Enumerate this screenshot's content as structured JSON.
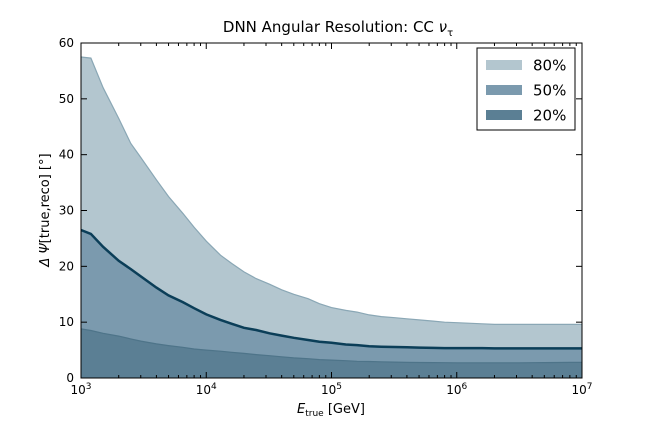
{
  "chart_data": {
    "type": "area",
    "title": {
      "main": "DNN Angular Resolution: CC ",
      "symbol": "ν",
      "sub": "τ"
    },
    "xlabel": {
      "main": "E",
      "sub": "true",
      "unit": " [GeV]"
    },
    "ylabel": {
      "main": "Δ Ψ",
      "rest": "[true,reco] [°]"
    },
    "xscale": "log",
    "xlim": [
      1000,
      10000000
    ],
    "ylim": [
      0,
      60
    ],
    "x_ticks": [
      {
        "value": 1000,
        "base": "10",
        "exp": "3"
      },
      {
        "value": 10000,
        "base": "10",
        "exp": "4"
      },
      {
        "value": 100000,
        "base": "10",
        "exp": "5"
      },
      {
        "value": 1000000,
        "base": "10",
        "exp": "6"
      },
      {
        "value": 10000000,
        "base": "10",
        "exp": "7"
      }
    ],
    "y_ticks": [
      "0",
      "10",
      "20",
      "30",
      "40",
      "50",
      "60"
    ],
    "grid": false,
    "legend_placement": "top-right",
    "x": [
      1000,
      1200,
      1500,
      2000,
      2500,
      3000,
      4000,
      5000,
      6500,
      8000,
      10000,
      13000,
      16000,
      20000,
      25000,
      32000,
      40000,
      50000,
      65000,
      80000,
      100000,
      130000,
      160000,
      200000,
      250000,
      320000,
      400000,
      500000,
      650000,
      800000,
      1000000,
      1300000,
      1600000,
      2000000,
      2500000,
      3200000,
      4000000,
      5000000,
      6500000,
      8000000,
      10000000
    ],
    "series": [
      {
        "name": "80%",
        "color": "#b3c6cf",
        "edge_color": "#8aa7b5",
        "values": [
          57.5,
          57.3,
          52.0,
          46.5,
          42.0,
          39.5,
          35.5,
          32.5,
          29.5,
          27.0,
          24.5,
          22.0,
          20.5,
          19.0,
          17.8,
          16.8,
          15.8,
          15.0,
          14.2,
          13.3,
          12.6,
          12.1,
          11.8,
          11.3,
          11.0,
          10.8,
          10.6,
          10.4,
          10.2,
          10.0,
          9.9,
          9.8,
          9.7,
          9.6,
          9.6,
          9.6,
          9.6,
          9.6,
          9.6,
          9.6,
          9.6
        ]
      },
      {
        "name": "50%",
        "color": "#7b9aae",
        "edge_color": "#0b3e58",
        "values": [
          26.5,
          25.8,
          23.5,
          21.0,
          19.5,
          18.2,
          16.2,
          14.8,
          13.6,
          12.5,
          11.4,
          10.4,
          9.7,
          9.0,
          8.6,
          8.0,
          7.6,
          7.2,
          6.8,
          6.5,
          6.3,
          6.0,
          5.9,
          5.7,
          5.6,
          5.55,
          5.5,
          5.45,
          5.4,
          5.35,
          5.35,
          5.35,
          5.35,
          5.3,
          5.3,
          5.3,
          5.3,
          5.3,
          5.3,
          5.3,
          5.3
        ]
      },
      {
        "name": "20%",
        "color": "#5b7f94",
        "edge_color": "#4e7489",
        "values": [
          8.8,
          8.5,
          8.0,
          7.5,
          7.0,
          6.6,
          6.1,
          5.8,
          5.5,
          5.2,
          5.0,
          4.8,
          4.6,
          4.4,
          4.2,
          4.0,
          3.8,
          3.6,
          3.45,
          3.3,
          3.2,
          3.1,
          3.0,
          2.95,
          2.9,
          2.85,
          2.8,
          2.78,
          2.76,
          2.74,
          2.72,
          2.72,
          2.72,
          2.72,
          2.72,
          2.72,
          2.74,
          2.76,
          2.78,
          2.8,
          2.8
        ]
      }
    ]
  }
}
